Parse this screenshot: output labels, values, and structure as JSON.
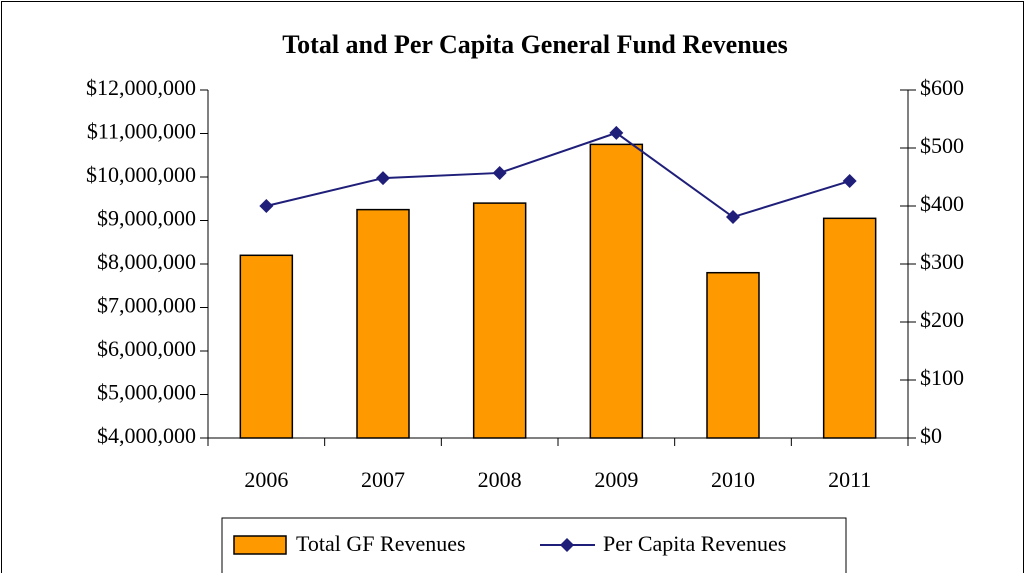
{
  "chart_data": {
    "type": "bar_line",
    "title": "Total and Per Capita General Fund Revenues",
    "categories": [
      "2006",
      "2007",
      "2008",
      "2009",
      "2010",
      "2011"
    ],
    "series": [
      {
        "name": "Total GF Revenues",
        "type": "bar",
        "color": "#ff9900",
        "values": [
          8200000,
          9250000,
          9400000,
          10750000,
          7800000,
          9050000
        ]
      },
      {
        "name": "Per Capita Revenues",
        "type": "line",
        "axis": "y2",
        "color": "#1f1f7a",
        "values": [
          400,
          448,
          457,
          526,
          381,
          443
        ]
      }
    ],
    "ylim": [
      4000000,
      12000000
    ],
    "yticks": [
      {
        "value": 4000000,
        "label": "$4,000,000"
      },
      {
        "value": 5000000,
        "label": "$5,000,000"
      },
      {
        "value": 6000000,
        "label": "$6,000,000"
      },
      {
        "value": 7000000,
        "label": "$7,000,000"
      },
      {
        "value": 8000000,
        "label": "$8,000,000"
      },
      {
        "value": 9000000,
        "label": "$9,000,000"
      },
      {
        "value": 10000000,
        "label": "$10,000,000"
      },
      {
        "value": 11000000,
        "label": "$11,000,000"
      },
      {
        "value": 12000000,
        "label": "$12,000,000"
      }
    ],
    "y2lim": [
      0,
      600
    ],
    "y2ticks": [
      {
        "value": 0,
        "label": "$0"
      },
      {
        "value": 100,
        "label": "$100"
      },
      {
        "value": 200,
        "label": "$200"
      },
      {
        "value": 300,
        "label": "$300"
      },
      {
        "value": 400,
        "label": "$400"
      },
      {
        "value": 500,
        "label": "$500"
      },
      {
        "value": 600,
        "label": "$600"
      }
    ],
    "grid": false,
    "legend": "bottom"
  }
}
